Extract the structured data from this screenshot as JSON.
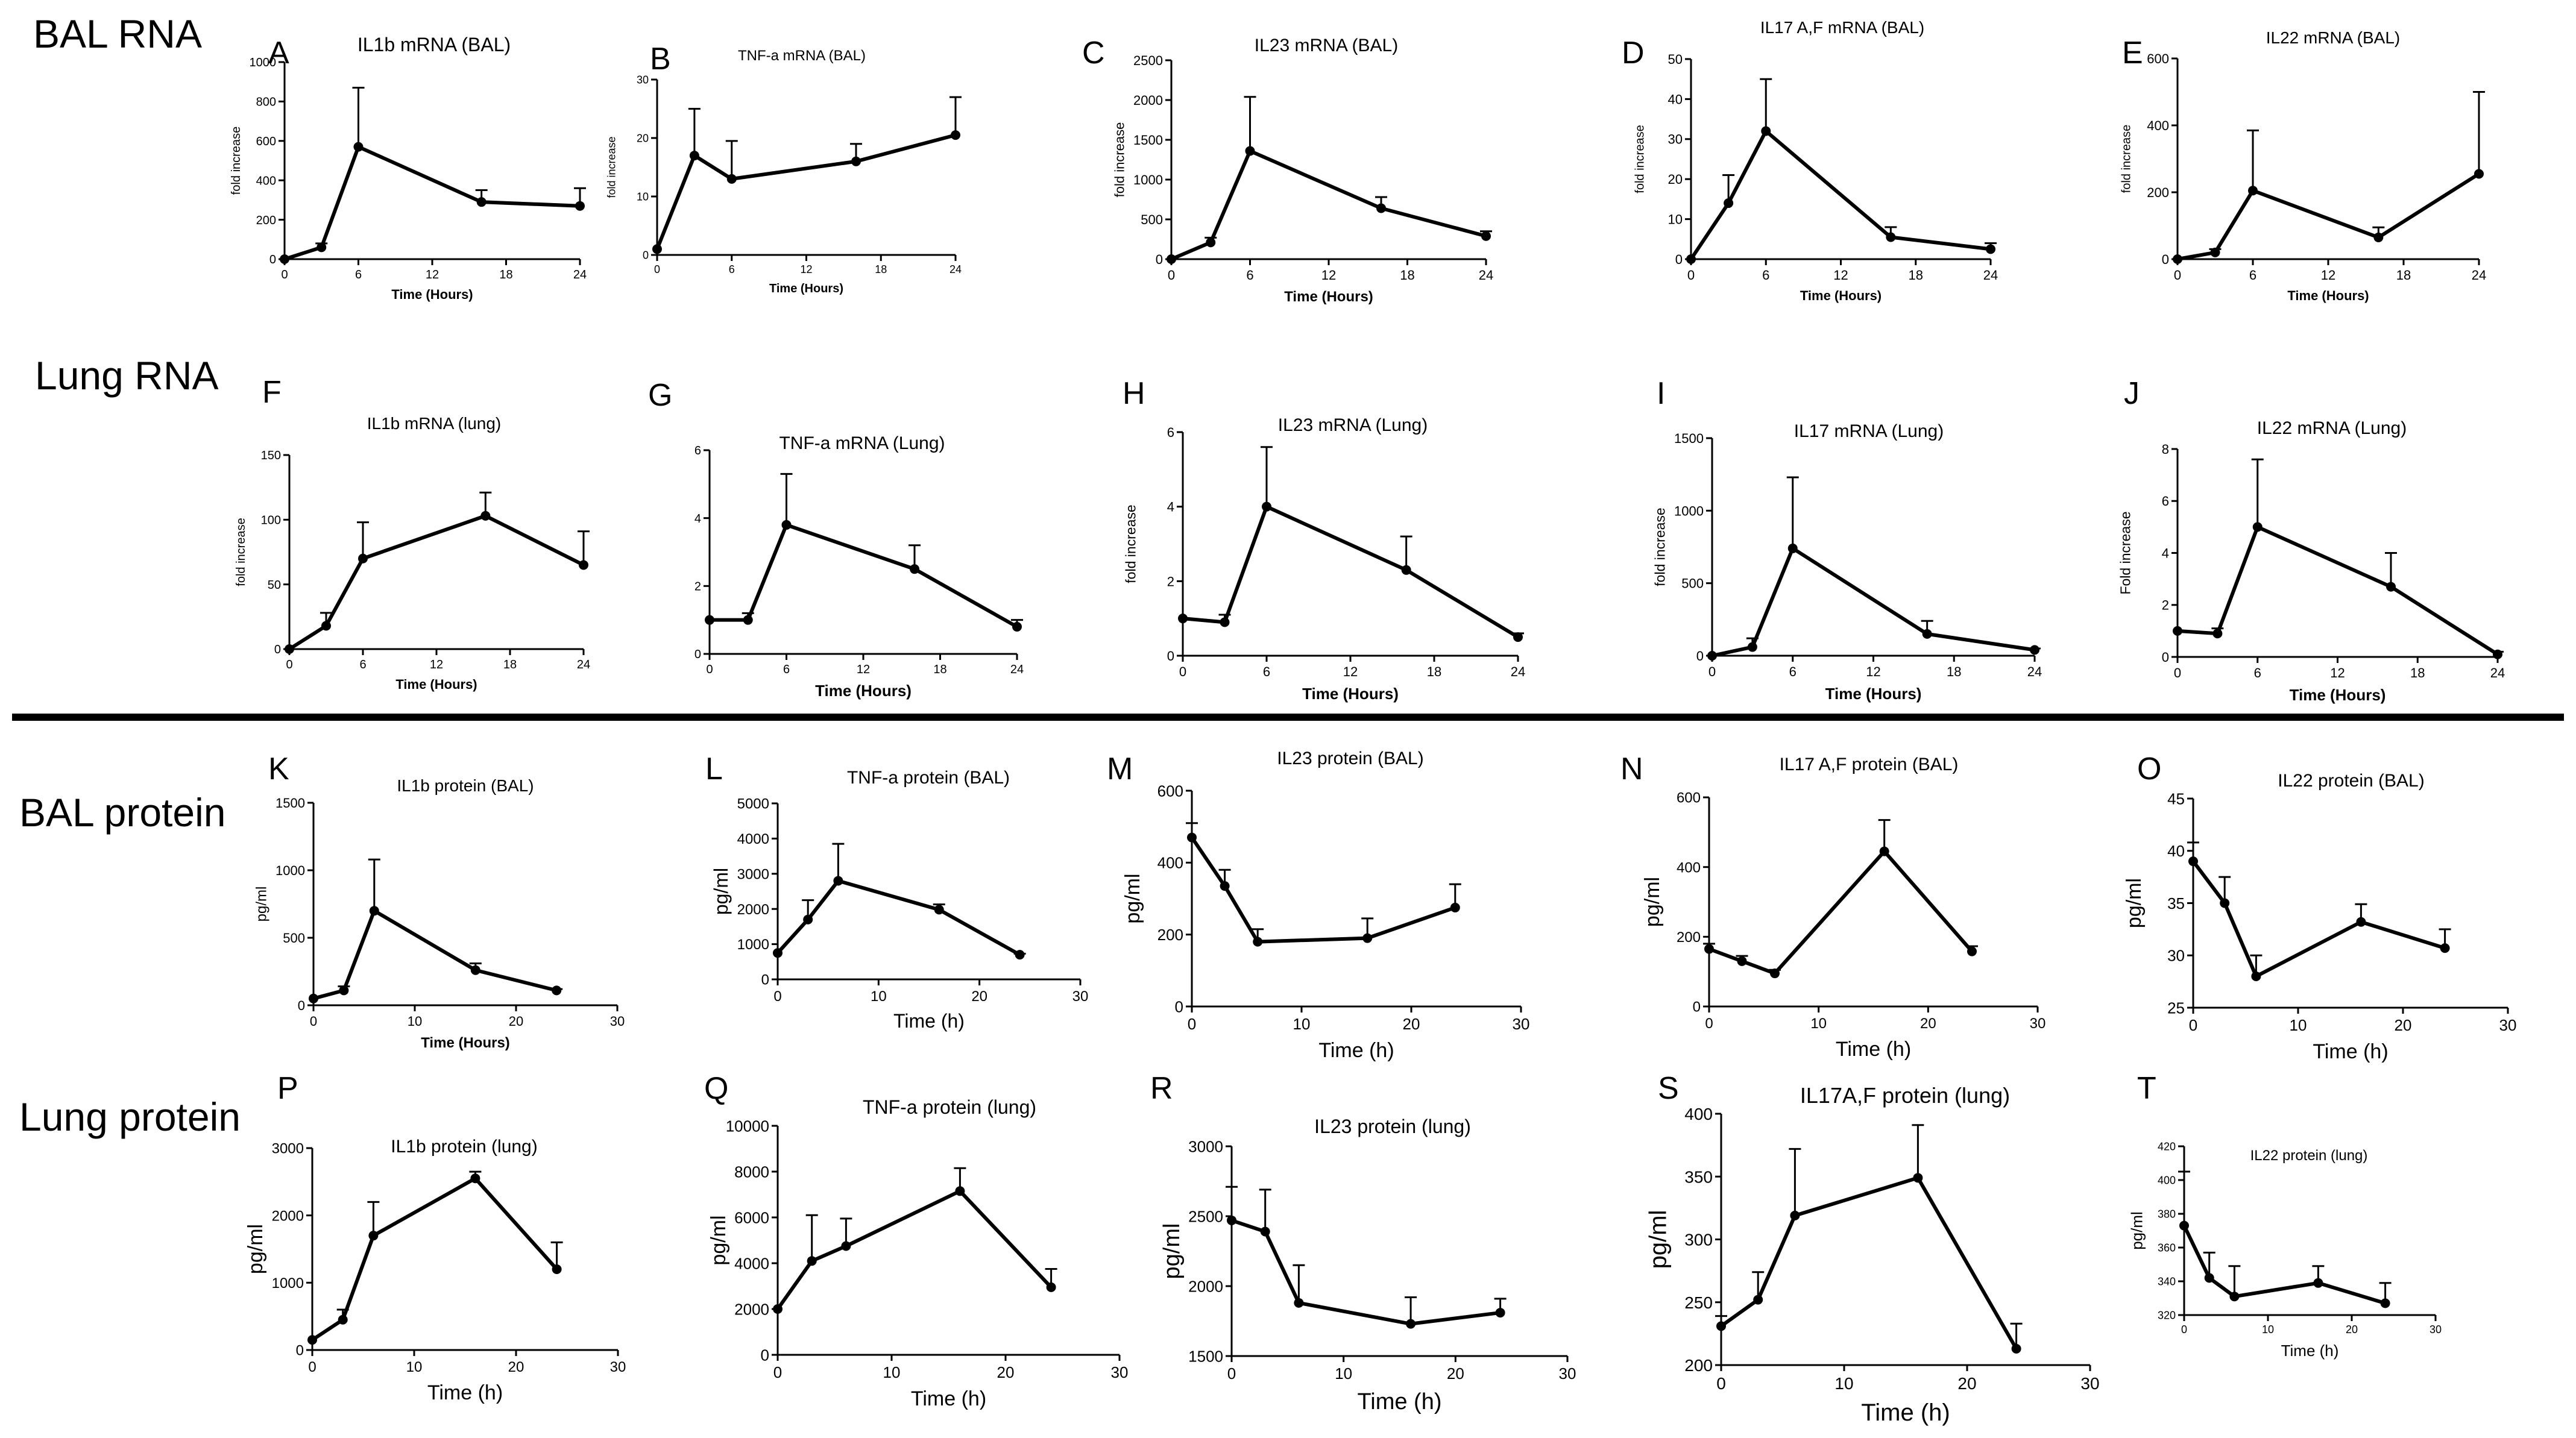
{
  "section_labels": [
    "BAL RNA",
    "Lung RNA",
    "BAL protein",
    "Lung protein"
  ],
  "chart_data": [
    {
      "id": "A",
      "type": "line",
      "title": "IL1b mRNA (BAL)",
      "xlabel": "Time (Hours)",
      "ylabel": "fold increase",
      "xlim": [
        0,
        24
      ],
      "xticks": [
        0,
        6,
        12,
        18,
        24
      ],
      "ylim": [
        0,
        1000
      ],
      "yticks": [
        0,
        200,
        400,
        600,
        800,
        1000
      ],
      "x": [
        0,
        3,
        6,
        16,
        24
      ],
      "y": [
        0,
        60,
        570,
        290,
        270
      ],
      "err": [
        0,
        20,
        300,
        60,
        90
      ]
    },
    {
      "id": "B",
      "type": "line",
      "title": "TNF-a mRNA (BAL)",
      "xlabel": "Time (Hours)",
      "ylabel": "fold increase",
      "xlim": [
        0,
        24
      ],
      "xticks": [
        0,
        6,
        12,
        18,
        24
      ],
      "ylim": [
        0,
        30
      ],
      "yticks": [
        0,
        10,
        20,
        30
      ],
      "x": [
        0,
        3,
        6,
        16,
        24
      ],
      "y": [
        1,
        17,
        13,
        16,
        20.5
      ],
      "err": [
        0,
        8,
        6.5,
        3,
        6.5
      ]
    },
    {
      "id": "C",
      "type": "line",
      "title": "IL23 mRNA (BAL)",
      "xlabel": "Time (Hours)",
      "ylabel": "fold increase",
      "xlim": [
        0,
        24
      ],
      "xticks": [
        0,
        6,
        12,
        18,
        24
      ],
      "ylim": [
        0,
        2500
      ],
      "yticks": [
        0,
        500,
        1000,
        1500,
        2000,
        2500
      ],
      "x": [
        0,
        3,
        6,
        16,
        24
      ],
      "y": [
        0,
        210,
        1360,
        640,
        290
      ],
      "err": [
        0,
        60,
        680,
        140,
        60
      ]
    },
    {
      "id": "D",
      "type": "line",
      "title": "IL17 A,F mRNA (BAL)",
      "xlabel": "Time (Hours)",
      "ylabel": "fold increase",
      "xlim": [
        0,
        24
      ],
      "xticks": [
        0,
        6,
        12,
        18,
        24
      ],
      "ylim": [
        0,
        50
      ],
      "yticks": [
        0,
        10,
        20,
        30,
        40,
        50
      ],
      "x": [
        0,
        3,
        6,
        16,
        24
      ],
      "y": [
        0,
        14,
        32,
        5.5,
        2.5
      ],
      "err": [
        0,
        7,
        13,
        2.5,
        1.5
      ]
    },
    {
      "id": "E",
      "type": "line",
      "title": "IL22 mRNA (BAL)",
      "xlabel": "Time (Hours)",
      "ylabel": "fold increase",
      "xlim": [
        0,
        24
      ],
      "xticks": [
        0,
        6,
        12,
        18,
        24
      ],
      "ylim": [
        0,
        600
      ],
      "yticks": [
        0,
        200,
        400,
        600
      ],
      "x": [
        0,
        3,
        6,
        16,
        24
      ],
      "y": [
        0,
        20,
        205,
        65,
        255
      ],
      "err": [
        0,
        10,
        180,
        30,
        245
      ]
    },
    {
      "id": "F",
      "type": "line",
      "title": "IL1b  mRNA (lung)",
      "xlabel": "Time (Hours)",
      "ylabel": "fold increase",
      "xlim": [
        0,
        24
      ],
      "xticks": [
        0,
        6,
        12,
        18,
        24
      ],
      "ylim": [
        0,
        150
      ],
      "yticks": [
        0,
        50,
        100,
        150
      ],
      "x": [
        0,
        3,
        6,
        16,
        24
      ],
      "y": [
        0,
        18,
        70,
        103,
        65
      ],
      "err": [
        0,
        10,
        28,
        18,
        26
      ]
    },
    {
      "id": "G",
      "type": "line",
      "title": "TNF-a  mRNA (Lung)",
      "xlabel": "Time (Hours)",
      "ylabel": "",
      "xlim": [
        0,
        24
      ],
      "xticks": [
        0,
        6,
        12,
        18,
        24
      ],
      "ylim": [
        0,
        6
      ],
      "yticks": [
        0,
        2,
        4,
        6
      ],
      "x": [
        0,
        3,
        6,
        16,
        24
      ],
      "y": [
        1,
        1,
        3.8,
        2.5,
        0.8
      ],
      "err": [
        0,
        0.2,
        1.5,
        0.7,
        0.2
      ]
    },
    {
      "id": "H",
      "type": "line",
      "title": "IL23 mRNA (Lung)",
      "xlabel": "Time (Hours)",
      "ylabel": "fold increase",
      "xlim": [
        0,
        24
      ],
      "xticks": [
        0,
        6,
        12,
        18,
        24
      ],
      "ylim": [
        0,
        6
      ],
      "yticks": [
        0,
        2,
        4,
        6
      ],
      "x": [
        0,
        3,
        6,
        16,
        24
      ],
      "y": [
        1,
        0.9,
        4,
        2.3,
        0.5
      ],
      "err": [
        0,
        0.2,
        1.6,
        0.9,
        0.1
      ]
    },
    {
      "id": "I",
      "type": "line",
      "title": "IL17 mRNA (Lung)",
      "xlabel": "Time (Hours)",
      "ylabel": "fold increase",
      "xlim": [
        0,
        24
      ],
      "xticks": [
        0,
        6,
        12,
        18,
        24
      ],
      "ylim": [
        0,
        1500
      ],
      "yticks": [
        0,
        500,
        1000,
        1500
      ],
      "x": [
        0,
        3,
        6,
        16,
        24
      ],
      "y": [
        0,
        60,
        740,
        150,
        40
      ],
      "err": [
        0,
        60,
        490,
        90,
        10
      ]
    },
    {
      "id": "J",
      "type": "line",
      "title": "IL22 mRNA (Lung)",
      "xlabel": "Time (Hours)",
      "ylabel": "Fold increase",
      "xlim": [
        0,
        24
      ],
      "xticks": [
        0,
        6,
        12,
        18,
        24
      ],
      "ylim": [
        0,
        8
      ],
      "yticks": [
        0,
        2,
        4,
        6,
        8
      ],
      "x": [
        0,
        3,
        6,
        16,
        24
      ],
      "y": [
        1,
        0.9,
        5,
        2.7,
        0.1
      ],
      "err": [
        0,
        0.2,
        2.6,
        1.3,
        0.1
      ]
    },
    {
      "id": "K",
      "type": "line",
      "title": "IL1b protein (BAL)",
      "xlabel": "Time (Hours)",
      "ylabel": "pg/ml",
      "xlim": [
        0,
        30
      ],
      "xticks": [
        0,
        10,
        20,
        30
      ],
      "ylim": [
        0,
        1500
      ],
      "yticks": [
        0,
        500,
        1000,
        1500
      ],
      "x": [
        0,
        3,
        6,
        16,
        24
      ],
      "y": [
        50,
        110,
        700,
        260,
        110
      ],
      "err": [
        0,
        30,
        380,
        50,
        10
      ]
    },
    {
      "id": "L",
      "type": "line",
      "title": "TNF-a protein (BAL)",
      "xlabel": "Time (h)",
      "ylabel": "pg/ml",
      "xlim": [
        0,
        30
      ],
      "xticks": [
        0,
        10,
        20,
        30
      ],
      "ylim": [
        0,
        5000
      ],
      "yticks": [
        0,
        1000,
        2000,
        3000,
        4000,
        5000
      ],
      "x": [
        0,
        3,
        6,
        16,
        24
      ],
      "y": [
        750,
        1700,
        2800,
        1980,
        700
      ],
      "err": [
        0,
        550,
        1050,
        150,
        30
      ]
    },
    {
      "id": "M",
      "type": "line",
      "title": "IL23 protein (BAL)",
      "xlabel": "Time (h)",
      "ylabel": "pg/ml",
      "xlim": [
        0,
        30
      ],
      "xticks": [
        0,
        10,
        20,
        30
      ],
      "ylim": [
        0,
        600
      ],
      "yticks": [
        0,
        200,
        400,
        600
      ],
      "x": [
        0,
        3,
        6,
        16,
        24
      ],
      "y": [
        470,
        335,
        180,
        190,
        275
      ],
      "err": [
        40,
        45,
        35,
        55,
        65
      ]
    },
    {
      "id": "N",
      "type": "line",
      "title": "IL17 A,F protein (BAL)",
      "xlabel": "Time (h)",
      "ylabel": "pg/ml",
      "xlim": [
        0,
        30
      ],
      "xticks": [
        0,
        10,
        20,
        30
      ],
      "ylim": [
        0,
        600
      ],
      "yticks": [
        0,
        200,
        400,
        600
      ],
      "x": [
        0,
        3,
        6,
        16,
        24
      ],
      "y": [
        165,
        130,
        95,
        445,
        158
      ],
      "err": [
        15,
        15,
        10,
        90,
        15
      ]
    },
    {
      "id": "O",
      "type": "line",
      "title": "IL22 protein (BAL)",
      "xlabel": "Time (h)",
      "ylabel": "pg/ml",
      "xlim": [
        0,
        30
      ],
      "xticks": [
        0,
        10,
        20,
        30
      ],
      "ylim": [
        25,
        45
      ],
      "yticks": [
        25,
        30,
        35,
        40,
        45
      ],
      "x": [
        0,
        3,
        6,
        16,
        24
      ],
      "y": [
        39,
        35,
        28,
        33.2,
        30.7
      ],
      "err": [
        1.8,
        2.5,
        2,
        1.7,
        1.8
      ]
    },
    {
      "id": "P",
      "type": "line",
      "title": "IL1b protein (lung)",
      "xlabel": "Time (h)",
      "ylabel": "pg/ml",
      "xlim": [
        0,
        30
      ],
      "xticks": [
        0,
        10,
        20,
        30
      ],
      "ylim": [
        0,
        3000
      ],
      "yticks": [
        0,
        1000,
        2000,
        3000
      ],
      "x": [
        0,
        3,
        6,
        16,
        24
      ],
      "y": [
        150,
        450,
        1700,
        2550,
        1200
      ],
      "err": [
        0,
        150,
        500,
        100,
        400
      ]
    },
    {
      "id": "Q",
      "type": "line",
      "title": "TNF-a protein (lung)",
      "xlabel": "Time (h)",
      "ylabel": "pg/ml",
      "xlim": [
        0,
        30
      ],
      "xticks": [
        0,
        10,
        20,
        30
      ],
      "ylim": [
        0,
        10000
      ],
      "yticks": [
        0,
        2000,
        4000,
        6000,
        8000,
        10000
      ],
      "x": [
        0,
        3,
        6,
        16,
        24
      ],
      "y": [
        2000,
        4100,
        4750,
        7150,
        2950
      ],
      "err": [
        0,
        2000,
        1200,
        1000,
        800
      ]
    },
    {
      "id": "R",
      "type": "line",
      "title": "IL23 protein (lung)",
      "xlabel": "Time (h)",
      "ylabel": "pg/ml",
      "xlim": [
        0,
        30
      ],
      "xticks": [
        0,
        10,
        20,
        30
      ],
      "ylim": [
        1500,
        3000
      ],
      "yticks": [
        1500,
        2000,
        2500,
        3000
      ],
      "x": [
        0,
        3,
        6,
        16,
        24
      ],
      "y": [
        2470,
        2390,
        1880,
        1730,
        1810
      ],
      "err": [
        240,
        300,
        270,
        190,
        100
      ]
    },
    {
      "id": "S",
      "type": "line",
      "title": "IL17A,F protein (lung)",
      "xlabel": "Time (h)",
      "ylabel": "pg/ml",
      "xlim": [
        0,
        30
      ],
      "xticks": [
        0,
        10,
        20,
        30
      ],
      "ylim": [
        200,
        400
      ],
      "yticks": [
        200,
        250,
        300,
        350,
        400
      ],
      "x": [
        0,
        3,
        6,
        16,
        24
      ],
      "y": [
        231,
        252,
        319,
        349,
        213
      ],
      "err": [
        8,
        22,
        53,
        42,
        20
      ]
    },
    {
      "id": "T",
      "type": "line",
      "title": "IL22 protein (lung)",
      "xlabel": "Time (h)",
      "ylabel": "pg/ml",
      "xlim": [
        0,
        30
      ],
      "xticks": [
        0,
        10,
        20,
        30
      ],
      "ylim": [
        320,
        420
      ],
      "yticks": [
        320,
        340,
        360,
        380,
        400,
        420
      ],
      "x": [
        0,
        3,
        6,
        16,
        24
      ],
      "y": [
        373,
        342,
        331,
        339,
        327
      ],
      "err": [
        32,
        15,
        18,
        10,
        12
      ]
    }
  ]
}
